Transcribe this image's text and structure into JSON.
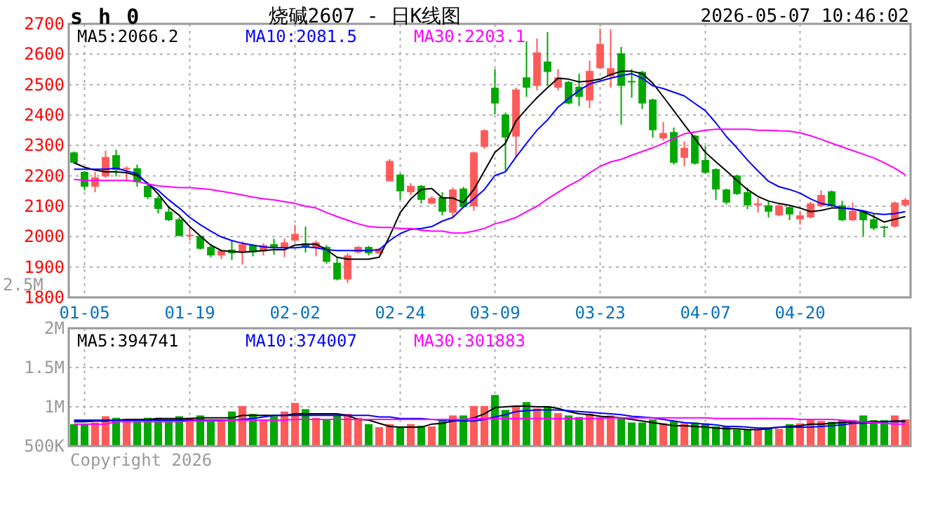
{
  "chart_data": [
    {
      "type": "candlestick",
      "title": "烧碱2607 - 日K线图",
      "subtitle": "2026-05-07 10:46:02",
      "annotations": [
        "s h 0"
      ],
      "categories": [
        null,
        "01-05",
        null,
        null,
        null,
        null,
        null,
        null,
        null,
        null,
        null,
        "01-19",
        null,
        null,
        null,
        null,
        null,
        null,
        null,
        null,
        null,
        "02-02",
        null,
        null,
        null,
        null,
        null,
        null,
        null,
        null,
        null,
        "02-24",
        null,
        null,
        null,
        null,
        null,
        null,
        null,
        null,
        "03-09",
        null,
        null,
        null,
        null,
        null,
        null,
        null,
        null,
        null,
        "03-23",
        null,
        null,
        null,
        null,
        null,
        null,
        null,
        null,
        null,
        "04-07",
        null,
        null,
        null,
        null,
        null,
        null,
        null,
        null,
        "04-20",
        null,
        null,
        null,
        null,
        null,
        null,
        null,
        null,
        null,
        null
      ],
      "ohlc": [
        [
          2277,
          2280,
          2240,
          2243
        ],
        [
          2213,
          2215,
          2152,
          2164
        ],
        [
          2164,
          2213,
          2146,
          2195
        ],
        [
          2198,
          2283,
          2193,
          2262
        ],
        [
          2268,
          2286,
          2198,
          2219
        ],
        [
          2222,
          2231,
          2185,
          2226
        ],
        [
          2225,
          2237,
          2164,
          2179
        ],
        [
          2167,
          2173,
          2124,
          2130
        ],
        [
          2127,
          2134,
          2076,
          2091
        ],
        [
          2082,
          2100,
          2051,
          2054
        ],
        [
          2057,
          2063,
          2002,
          2002
        ],
        [
          2003,
          2030,
          1987,
          2006
        ],
        [
          2002,
          2002,
          1957,
          1960
        ],
        [
          1966,
          1975,
          1932,
          1938
        ],
        [
          1938,
          1957,
          1926,
          1954
        ],
        [
          1957,
          1987,
          1923,
          1945
        ],
        [
          1948,
          1984,
          1908,
          1975
        ],
        [
          1972,
          1975,
          1935,
          1948
        ],
        [
          1951,
          1978,
          1938,
          1972
        ],
        [
          1975,
          1993,
          1941,
          1963
        ],
        [
          1963,
          1993,
          1932,
          1981
        ],
        [
          1987,
          2039,
          1984,
          2009
        ],
        [
          1978,
          2033,
          1948,
          1966
        ],
        [
          1963,
          1987,
          1935,
          1981
        ],
        [
          1966,
          1972,
          1911,
          1917
        ],
        [
          1914,
          1932,
          1856,
          1859
        ],
        [
          1859,
          1945,
          1847,
          1938
        ],
        [
          1948,
          1969,
          1945,
          1966
        ],
        [
          1966,
          1969,
          1938,
          1945
        ],
        [
          1945,
          1963,
          1942,
          1960
        ],
        [
          2182,
          2255,
          2182,
          2249
        ],
        [
          2204,
          2207,
          2121,
          2149
        ],
        [
          2146,
          2176,
          2137,
          2167
        ],
        [
          2167,
          2170,
          2109,
          2121
        ],
        [
          2109,
          2133,
          2106,
          2127
        ],
        [
          2130,
          2146,
          2070,
          2082
        ],
        [
          2079,
          2161,
          2063,
          2155
        ],
        [
          2158,
          2164,
          2094,
          2097
        ],
        [
          2100,
          2280,
          2085,
          2277
        ],
        [
          2295,
          2353,
          2289,
          2350
        ],
        [
          2490,
          2551,
          2402,
          2438
        ],
        [
          2402,
          2408,
          2216,
          2326
        ],
        [
          2329,
          2490,
          2262,
          2484
        ],
        [
          2524,
          2643,
          2460,
          2490
        ],
        [
          2496,
          2652,
          2481,
          2606
        ],
        [
          2576,
          2673,
          2496,
          2542
        ],
        [
          2490,
          2551,
          2481,
          2524
        ],
        [
          2509,
          2512,
          2435,
          2438
        ],
        [
          2493,
          2536,
          2429,
          2460
        ],
        [
          2448,
          2579,
          2423,
          2545
        ],
        [
          2554,
          2685,
          2551,
          2634
        ],
        [
          2527,
          2682,
          2490,
          2554
        ],
        [
          2603,
          2624,
          2368,
          2496
        ],
        [
          2512,
          2551,
          2457,
          2509
        ],
        [
          2542,
          2545,
          2420,
          2438
        ],
        [
          2451,
          2454,
          2326,
          2350
        ],
        [
          2323,
          2377,
          2316,
          2341
        ],
        [
          2344,
          2359,
          2237,
          2243
        ],
        [
          2259,
          2313,
          2231,
          2292
        ],
        [
          2332,
          2335,
          2237,
          2240
        ],
        [
          2252,
          2298,
          2207,
          2210
        ],
        [
          2222,
          2225,
          2121,
          2155
        ],
        [
          2155,
          2158,
          2106,
          2112
        ],
        [
          2201,
          2204,
          2137,
          2140
        ],
        [
          2146,
          2161,
          2091,
          2103
        ],
        [
          2103,
          2127,
          2079,
          2109
        ],
        [
          2103,
          2115,
          2063,
          2082
        ],
        [
          2070,
          2109,
          2067,
          2103
        ],
        [
          2097,
          2100,
          2054,
          2073
        ],
        [
          2057,
          2085,
          2039,
          2070
        ],
        [
          2063,
          2115,
          2060,
          2109
        ],
        [
          2100,
          2152,
          2097,
          2137
        ],
        [
          2149,
          2152,
          2097,
          2100
        ],
        [
          2103,
          2118,
          2051,
          2054
        ],
        [
          2054,
          2112,
          2051,
          2085
        ],
        [
          2082,
          2085,
          2002,
          2054
        ],
        [
          2057,
          2076,
          2021,
          2027
        ],
        [
          2033,
          2036,
          1999,
          2030
        ],
        [
          2033,
          2115,
          2030,
          2112
        ],
        [
          2103,
          2127,
          2100,
          2121
        ]
      ],
      "colors": [
        "#00a800",
        "#00a800",
        "#ff5a5a",
        "#ff5a5a",
        "#00a800",
        "#ff5a5a",
        "#00a800",
        "#00a800",
        "#00a800",
        "#00a800",
        "#00a800",
        "#ff5a5a",
        "#00a800",
        "#00a800",
        "#ff5a5a",
        "#00a800",
        "#ff5a5a",
        "#00a800",
        "#ff5a5a",
        "#00a800",
        "#ff5a5a",
        "#ff5a5a",
        "#00a800",
        "#ff5a5a",
        "#00a800",
        "#00a800",
        "#ff5a5a",
        "#ff5a5a",
        "#00a800",
        "#ff5a5a",
        "#ff5a5a",
        "#00a800",
        "#ff5a5a",
        "#00a800",
        "#ff5a5a",
        "#00a800",
        "#ff5a5a",
        "#00a800",
        "#ff5a5a",
        "#ff5a5a",
        "#00a800",
        "#00a800",
        "#ff5a5a",
        "#00a800",
        "#ff5a5a",
        "#00a800",
        "#ff5a5a",
        "#00a800",
        "#00a800",
        "#ff5a5a",
        "#ff5a5a",
        "#ff5a5a",
        "#00a800",
        "#00a800",
        "#00a800",
        "#00a800",
        "#ff5a5a",
        "#00a800",
        "#ff5a5a",
        "#00a800",
        "#00a800",
        "#00a800",
        "#00a800",
        "#00a800",
        "#00a800",
        "#ff5a5a",
        "#00a800",
        "#ff5a5a",
        "#00a800",
        "#ff5a5a",
        "#ff5a5a",
        "#ff5a5a",
        "#00a800",
        "#00a800",
        "#ff5a5a",
        "#00a800",
        "#00a800",
        "#00a800",
        "#ff5a5a",
        "#ff5a5a"
      ],
      "series": [
        {
          "type": "line",
          "name": "MA5:2066.2",
          "color": "#000000",
          "values": [
            2243,
            2228,
            2219,
            2213,
            2213,
            2210,
            2201,
            2176,
            2140,
            2097,
            2070,
            2033,
            2002,
            1972,
            1954,
            1951,
            1948,
            1951,
            1954,
            1957,
            1957,
            1972,
            1975,
            1975,
            1957,
            1932,
            1926,
            1926,
            1926,
            1932,
            2002,
            2079,
            2124,
            2155,
            2158,
            2127,
            2127,
            2112,
            2155,
            2216,
            2277,
            2307,
            2380,
            2420,
            2457,
            2490,
            2521,
            2518,
            2509,
            2512,
            2518,
            2533,
            2544,
            2544,
            2536,
            2505,
            2460,
            2414,
            2368,
            2323,
            2277,
            2246,
            2216,
            2185,
            2155,
            2132,
            2117,
            2109,
            2103,
            2094,
            2082,
            2086,
            2094,
            2094,
            2091,
            2082,
            2066,
            2048,
            2057,
            2066
          ]
        },
        {
          "type": "line",
          "name": "MA10:2081.5",
          "color": "#0000ff",
          "values": [
            2222,
            2222,
            2222,
            2222,
            2225,
            2216,
            2207,
            2173,
            2152,
            2121,
            2094,
            2063,
            2039,
            2018,
            1999,
            1987,
            1978,
            1972,
            1966,
            1963,
            1963,
            1963,
            1966,
            1963,
            1957,
            1954,
            1954,
            1954,
            1954,
            1957,
            1987,
            2010,
            2024,
            2027,
            2033,
            2051,
            2063,
            2097,
            2124,
            2155,
            2201,
            2213,
            2262,
            2307,
            2350,
            2384,
            2426,
            2454,
            2481,
            2502,
            2512,
            2521,
            2530,
            2536,
            2521,
            2496,
            2487,
            2475,
            2463,
            2438,
            2414,
            2374,
            2329,
            2292,
            2252,
            2216,
            2182,
            2164,
            2155,
            2143,
            2124,
            2109,
            2103,
            2094,
            2091,
            2085,
            2076,
            2073,
            2076,
            2082
          ]
        },
        {
          "type": "line",
          "name": "MA30:2203.1",
          "color": "#ff00ff",
          "values": [
            2188,
            2185,
            2185,
            2185,
            2185,
            2185,
            2182,
            2173,
            2167,
            2164,
            2161,
            2161,
            2158,
            2155,
            2149,
            2143,
            2137,
            2130,
            2124,
            2121,
            2115,
            2109,
            2100,
            2094,
            2079,
            2066,
            2054,
            2042,
            2033,
            2030,
            2030,
            2027,
            2027,
            2021,
            2018,
            2018,
            2012,
            2012,
            2018,
            2027,
            2042,
            2051,
            2063,
            2082,
            2100,
            2124,
            2146,
            2167,
            2185,
            2210,
            2231,
            2246,
            2254,
            2268,
            2280,
            2292,
            2307,
            2323,
            2338,
            2344,
            2350,
            2353,
            2353,
            2353,
            2353,
            2350,
            2350,
            2348,
            2347,
            2341,
            2332,
            2320,
            2307,
            2295,
            2283,
            2271,
            2259,
            2243,
            2225,
            2203
          ]
        }
      ],
      "ylim": [
        1800,
        2700
      ],
      "yticks": [
        1800,
        1900,
        2000,
        2100,
        2200,
        2300,
        2400,
        2500,
        2600,
        2700
      ],
      "grid": true,
      "legend": "top left"
    },
    {
      "type": "bar",
      "annotations": [
        "2.5M",
        "Copyright 2026"
      ],
      "tick_labels": "y",
      "categories": [
        null,
        null,
        null,
        null,
        null,
        null,
        null,
        null,
        null,
        null,
        null,
        null,
        null,
        null,
        null,
        null,
        null,
        null,
        null,
        null,
        null,
        null,
        null,
        null,
        null,
        null,
        null,
        null,
        null,
        null,
        null,
        null,
        null,
        null,
        null,
        null,
        null,
        null,
        null,
        null,
        null,
        null,
        null,
        null,
        null,
        null,
        null,
        null,
        null,
        null,
        null,
        null,
        null,
        null,
        null,
        null,
        null,
        null,
        null,
        null,
        null,
        null,
        null,
        null,
        null,
        null,
        null,
        null,
        null,
        null,
        null,
        null,
        null,
        null,
        null,
        null,
        null,
        null,
        null,
        null
      ],
      "values": [
        780000,
        780000,
        800000,
        880000,
        860000,
        840000,
        840000,
        860000,
        860000,
        840000,
        880000,
        860000,
        890000,
        830000,
        820000,
        940000,
        1010000,
        910000,
        840000,
        880000,
        940000,
        1050000,
        970000,
        860000,
        830000,
        890000,
        910000,
        860000,
        780000,
        740000,
        780000,
        750000,
        780000,
        760000,
        750000,
        830000,
        890000,
        890000,
        1010000,
        1010000,
        1150000,
        960000,
        1000000,
        1060000,
        980000,
        1010000,
        920000,
        890000,
        870000,
        910000,
        870000,
        890000,
        860000,
        800000,
        800000,
        840000,
        790000,
        820000,
        790000,
        800000,
        790000,
        750000,
        750000,
        710000,
        710000,
        710000,
        720000,
        720000,
        780000,
        790000,
        830000,
        820000,
        810000,
        830000,
        830000,
        890000,
        830000,
        830000,
        890000,
        840000
      ],
      "colors": [
        "#00a800",
        "#00a800",
        "#ff5a5a",
        "#ff5a5a",
        "#00a800",
        "#ff5a5a",
        "#00a800",
        "#00a800",
        "#00a800",
        "#00a800",
        "#00a800",
        "#ff5a5a",
        "#00a800",
        "#00a800",
        "#ff5a5a",
        "#00a800",
        "#ff5a5a",
        "#00a800",
        "#ff5a5a",
        "#00a800",
        "#ff5a5a",
        "#ff5a5a",
        "#00a800",
        "#ff5a5a",
        "#00a800",
        "#00a800",
        "#ff5a5a",
        "#ff5a5a",
        "#00a800",
        "#ff5a5a",
        "#ff5a5a",
        "#00a800",
        "#ff5a5a",
        "#00a800",
        "#ff5a5a",
        "#00a800",
        "#ff5a5a",
        "#00a800",
        "#ff5a5a",
        "#ff5a5a",
        "#00a800",
        "#00a800",
        "#ff5a5a",
        "#00a800",
        "#ff5a5a",
        "#00a800",
        "#ff5a5a",
        "#00a800",
        "#00a800",
        "#ff5a5a",
        "#ff5a5a",
        "#ff5a5a",
        "#00a800",
        "#00a800",
        "#00a800",
        "#00a800",
        "#ff5a5a",
        "#00a800",
        "#ff5a5a",
        "#00a800",
        "#00a800",
        "#00a800",
        "#00a800",
        "#00a800",
        "#00a800",
        "#ff5a5a",
        "#00a800",
        "#ff5a5a",
        "#00a800",
        "#ff5a5a",
        "#ff5a5a",
        "#ff5a5a",
        "#00a800",
        "#00a800",
        "#ff5a5a",
        "#00a800",
        "#00a800",
        "#00a800",
        "#ff5a5a",
        "#ff5a5a"
      ],
      "series": [
        {
          "type": "line",
          "name": "MA5:394741",
          "color": "#000000",
          "values": [
            810000,
            810000,
            820000,
            820000,
            830000,
            840000,
            840000,
            840000,
            850000,
            850000,
            850000,
            850000,
            860000,
            860000,
            860000,
            860000,
            890000,
            890000,
            890000,
            890000,
            890000,
            910000,
            910000,
            910000,
            910000,
            910000,
            890000,
            840000,
            830000,
            790000,
            750000,
            740000,
            740000,
            740000,
            780000,
            790000,
            820000,
            830000,
            860000,
            910000,
            990000,
            1000000,
            1010000,
            1010000,
            1000000,
            1000000,
            980000,
            940000,
            910000,
            900000,
            880000,
            870000,
            860000,
            840000,
            820000,
            800000,
            780000,
            760000,
            760000,
            750000,
            740000,
            730000,
            720000,
            720000,
            710000,
            710000,
            720000,
            740000,
            750000,
            760000,
            780000,
            780000,
            790000,
            800000,
            810000,
            810000,
            810000,
            810000,
            820000,
            820000
          ]
        },
        {
          "type": "line",
          "name": "MA10:374007",
          "color": "#0000ff",
          "values": [
            830000,
            830000,
            830000,
            830000,
            830000,
            830000,
            830000,
            830000,
            830000,
            830000,
            830000,
            830000,
            830000,
            830000,
            830000,
            830000,
            840000,
            850000,
            870000,
            890000,
            890000,
            890000,
            890000,
            890000,
            890000,
            890000,
            890000,
            890000,
            890000,
            870000,
            870000,
            850000,
            850000,
            850000,
            840000,
            830000,
            830000,
            820000,
            820000,
            840000,
            870000,
            900000,
            940000,
            950000,
            960000,
            960000,
            960000,
            950000,
            940000,
            930000,
            920000,
            910000,
            900000,
            880000,
            870000,
            860000,
            840000,
            820000,
            800000,
            790000,
            780000,
            770000,
            750000,
            750000,
            740000,
            730000,
            730000,
            740000,
            740000,
            740000,
            740000,
            750000,
            760000,
            770000,
            790000,
            790000,
            800000,
            810000,
            810000,
            810000
          ]
        },
        {
          "type": "line",
          "name": "MA30:301883",
          "color": "#ff00ff",
          "values": [
            780000,
            780000,
            780000,
            780000,
            810000,
            810000,
            810000,
            810000,
            810000,
            810000,
            810000,
            820000,
            820000,
            820000,
            820000,
            830000,
            830000,
            830000,
            830000,
            830000,
            830000,
            840000,
            840000,
            840000,
            840000,
            840000,
            840000,
            840000,
            840000,
            840000,
            840000,
            840000,
            840000,
            840000,
            840000,
            840000,
            840000,
            840000,
            850000,
            850000,
            850000,
            850000,
            850000,
            850000,
            850000,
            850000,
            850000,
            850000,
            850000,
            850000,
            850000,
            860000,
            860000,
            860000,
            860000,
            860000,
            860000,
            860000,
            860000,
            860000,
            860000,
            850000,
            850000,
            850000,
            850000,
            850000,
            850000,
            850000,
            850000,
            840000,
            840000,
            840000,
            840000,
            830000,
            820000,
            810000,
            800000,
            790000,
            780000,
            780000
          ]
        }
      ],
      "ylim": [
        500000,
        2000000
      ],
      "yticks": [
        {
          "value": 500000,
          "label": "500K"
        },
        {
          "value": 1000000,
          "label": "1M"
        },
        {
          "value": 1500000,
          "label": "1.5M"
        },
        {
          "value": 2000000,
          "label": "2M"
        }
      ],
      "grid": true,
      "legend": "top left"
    }
  ]
}
